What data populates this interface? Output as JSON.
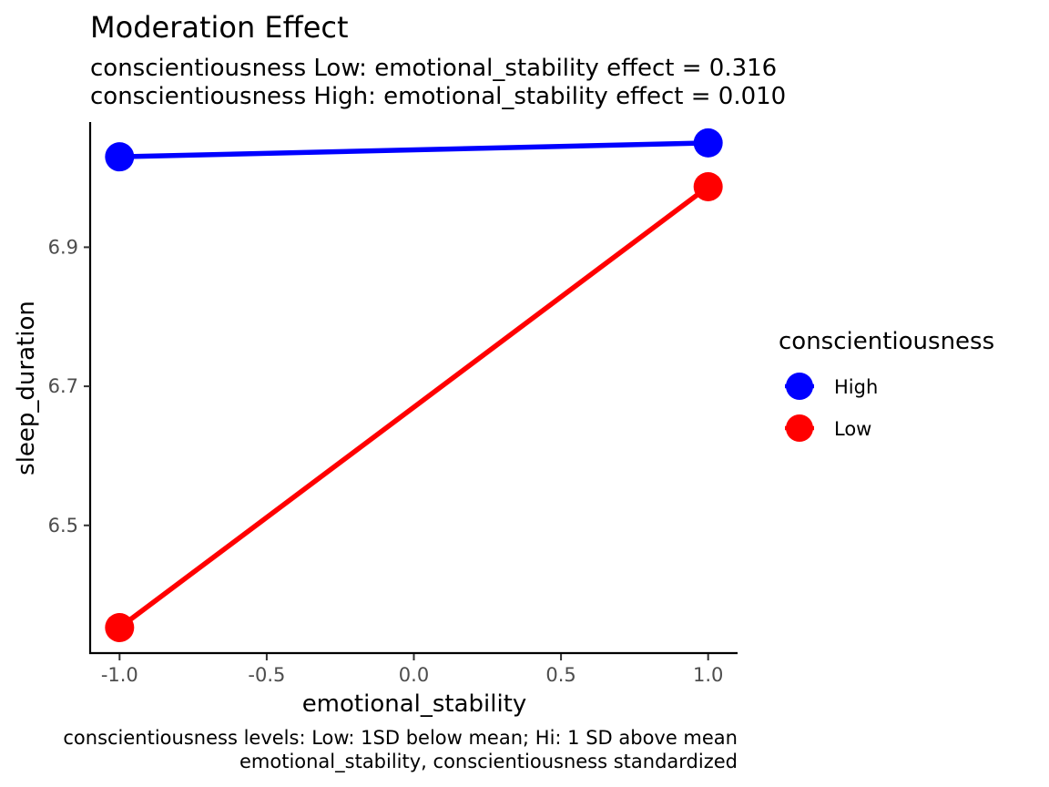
{
  "chart_data": {
    "type": "line",
    "title": "Moderation Effect",
    "subtitle_lines": [
      "conscientiousness Low: emotional_stability effect = 0.316",
      "conscientiousness High: emotional_stability effect = 0.010"
    ],
    "xlabel": "emotional_stability",
    "ylabel": "sleep_duration",
    "xlim": [
      -1.1,
      1.1
    ],
    "ylim": [
      6.315,
      7.08
    ],
    "x_ticks": [
      -1.0,
      -0.5,
      0.0,
      0.5,
      1.0
    ],
    "x_tick_labels": [
      "-1.0",
      "-0.5",
      "0.0",
      "0.5",
      "1.0"
    ],
    "y_ticks": [
      6.5,
      6.7,
      6.9
    ],
    "y_tick_labels": [
      "6.5",
      "6.7",
      "6.9"
    ],
    "grid": false,
    "legend_position": "right",
    "legend_title": "conscientiousness",
    "series": [
      {
        "name": "High",
        "color": "#0000ff",
        "x": [
          -1.0,
          1.0
        ],
        "y": [
          7.03,
          7.05
        ]
      },
      {
        "name": "Low",
        "color": "#ff0000",
        "x": [
          -1.0,
          1.0
        ],
        "y": [
          6.353,
          6.987
        ]
      }
    ],
    "caption_lines": [
      "conscientiousness levels: Low: 1SD below mean; Hi: 1 SD above mean",
      "emotional_stability, conscientiousness standardized"
    ]
  }
}
